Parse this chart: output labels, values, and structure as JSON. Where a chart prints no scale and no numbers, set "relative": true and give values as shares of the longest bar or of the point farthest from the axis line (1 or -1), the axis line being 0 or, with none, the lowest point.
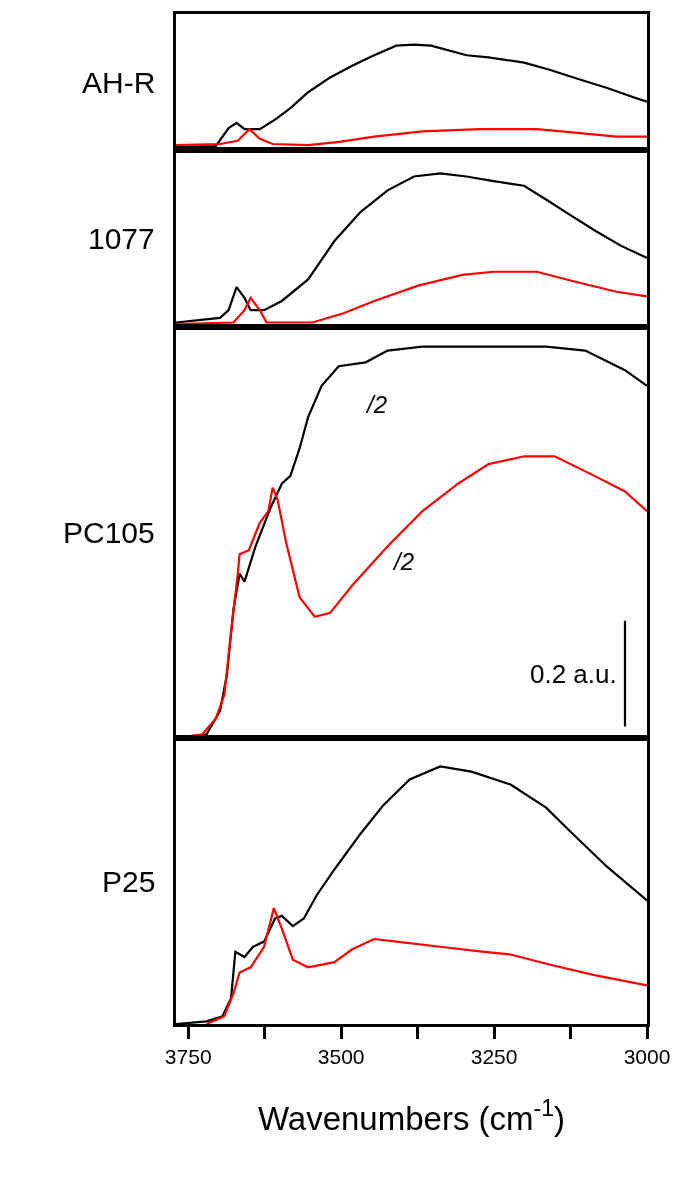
{
  "chart_data": [
    {
      "type": "line",
      "relative": true,
      "ylabel": "AH-R",
      "xlim": [
        3770,
        3000
      ],
      "tick_labels": false,
      "series": [
        {
          "color": "#000000",
          "x": [
            3770,
            3705,
            3684,
            3671,
            3658,
            3633,
            3608,
            3583,
            3554,
            3518,
            3482,
            3446,
            3410,
            3381,
            3353,
            3295,
            3259,
            3201,
            3158,
            3115,
            3065,
            3021,
            3000
          ],
          "values": [
            0.03,
            0.04,
            0.21,
            0.26,
            0.2,
            0.2,
            0.29,
            0.4,
            0.55,
            0.69,
            0.8,
            0.9,
            0.99,
            1.0,
            0.99,
            0.9,
            0.88,
            0.83,
            0.76,
            0.68,
            0.59,
            0.5,
            0.46
          ]
        },
        {
          "color": "#ff0000",
          "x": [
            3770,
            3698,
            3669,
            3650,
            3633,
            3612,
            3554,
            3503,
            3446,
            3367,
            3273,
            3180,
            3122,
            3050,
            3000
          ],
          "values": [
            0.05,
            0.06,
            0.09,
            0.2,
            0.11,
            0.06,
            0.05,
            0.08,
            0.13,
            0.18,
            0.2,
            0.2,
            0.17,
            0.13,
            0.13
          ]
        }
      ]
    },
    {
      "type": "line",
      "relative": true,
      "ylabel": "1077",
      "xlim": [
        3770,
        3000
      ],
      "tick_labels": false,
      "series": [
        {
          "color": "#000000",
          "x": [
            3770,
            3698,
            3684,
            3671,
            3658,
            3648,
            3626,
            3597,
            3554,
            3511,
            3468,
            3424,
            3381,
            3338,
            3295,
            3251,
            3201,
            3165,
            3122,
            3086,
            3043,
            3000
          ],
          "values": [
            0.03,
            0.06,
            0.11,
            0.26,
            0.19,
            0.11,
            0.11,
            0.17,
            0.31,
            0.56,
            0.75,
            0.89,
            0.98,
            1.0,
            0.98,
            0.95,
            0.92,
            0.83,
            0.72,
            0.63,
            0.53,
            0.45
          ]
        },
        {
          "color": "#ff0000",
          "x": [
            3770,
            3676,
            3658,
            3648,
            3633,
            3622,
            3547,
            3496,
            3446,
            3374,
            3302,
            3251,
            3180,
            3122,
            3050,
            3000
          ],
          "values": [
            0.02,
            0.03,
            0.11,
            0.19,
            0.11,
            0.03,
            0.03,
            0.09,
            0.17,
            0.27,
            0.34,
            0.36,
            0.36,
            0.3,
            0.23,
            0.2
          ]
        }
      ]
    },
    {
      "type": "line",
      "relative": true,
      "ylabel": "PC105",
      "xlim": [
        3770,
        3000
      ],
      "tick_labels": false,
      "annotations": [
        "/2",
        "/2"
      ],
      "series": [
        {
          "color": "#000000",
          "x": [
            3770,
            3720,
            3698,
            3687,
            3676,
            3666,
            3658,
            3640,
            3615,
            3597,
            3583,
            3568,
            3554,
            3532,
            3504,
            3460,
            3424,
            3367,
            3266,
            3165,
            3101,
            3036,
            3000
          ],
          "values": [
            0,
            0.01,
            0.07,
            0.16,
            0.33,
            0.42,
            0.4,
            0.49,
            0.59,
            0.65,
            0.67,
            0.74,
            0.82,
            0.9,
            0.95,
            0.96,
            0.99,
            1.0,
            1.0,
            1.0,
            0.99,
            0.94,
            0.9
          ]
        },
        {
          "color": "#ff0000",
          "x": [
            3770,
            3727,
            3705,
            3691,
            3680,
            3669,
            3666,
            3651,
            3633,
            3619,
            3612,
            3604,
            3590,
            3568,
            3543,
            3518,
            3482,
            3424,
            3367,
            3309,
            3259,
            3201,
            3151,
            3086,
            3036,
            3000
          ],
          "values": [
            0,
            0.01,
            0.05,
            0.11,
            0.27,
            0.42,
            0.47,
            0.48,
            0.55,
            0.58,
            0.64,
            0.61,
            0.5,
            0.36,
            0.31,
            0.32,
            0.39,
            0.49,
            0.58,
            0.65,
            0.7,
            0.72,
            0.72,
            0.67,
            0.63,
            0.58
          ]
        },
        {
          "name": "0.2 a.u.",
          "color": "#000000",
          "x": [
            3036,
            3036
          ],
          "values": [
            0.03,
            0.3
          ]
        }
      ]
    },
    {
      "type": "line",
      "relative": true,
      "ylabel": "P25",
      "xlabel": "Wavenumbers (cm$^{-1}$)",
      "xlim": [
        3770,
        3000
      ],
      "tick_labels": "x",
      "xticks": [
        3750,
        {
          "value": 3625,
          "label": null
        },
        3500,
        {
          "value": 3375,
          "label": null
        },
        3250,
        {
          "value": 3125,
          "label": null
        },
        3000
      ],
      "series": [
        {
          "color": "#000000",
          "x": [
            3770,
            3720,
            3694,
            3680,
            3673,
            3658,
            3644,
            3626,
            3608,
            3597,
            3579,
            3561,
            3540,
            3511,
            3468,
            3431,
            3388,
            3338,
            3287,
            3223,
            3165,
            3122,
            3065,
            3000
          ],
          "values": [
            0,
            0.01,
            0.03,
            0.1,
            0.28,
            0.26,
            0.3,
            0.32,
            0.41,
            0.42,
            0.38,
            0.41,
            0.5,
            0.6,
            0.74,
            0.85,
            0.95,
            1.0,
            0.98,
            0.93,
            0.84,
            0.74,
            0.61,
            0.48
          ]
        },
        {
          "color": "#ff0000",
          "x": [
            3720,
            3691,
            3676,
            3666,
            3648,
            3626,
            3610,
            3597,
            3579,
            3554,
            3511,
            3482,
            3446,
            3410,
            3338,
            3266,
            3223,
            3158,
            3086,
            3000
          ],
          "values": [
            0,
            0.03,
            0.12,
            0.2,
            0.22,
            0.3,
            0.45,
            0.37,
            0.25,
            0.22,
            0.24,
            0.29,
            0.33,
            0.32,
            0.3,
            0.28,
            0.27,
            0.23,
            0.19,
            0.15
          ]
        }
      ]
    }
  ]
}
